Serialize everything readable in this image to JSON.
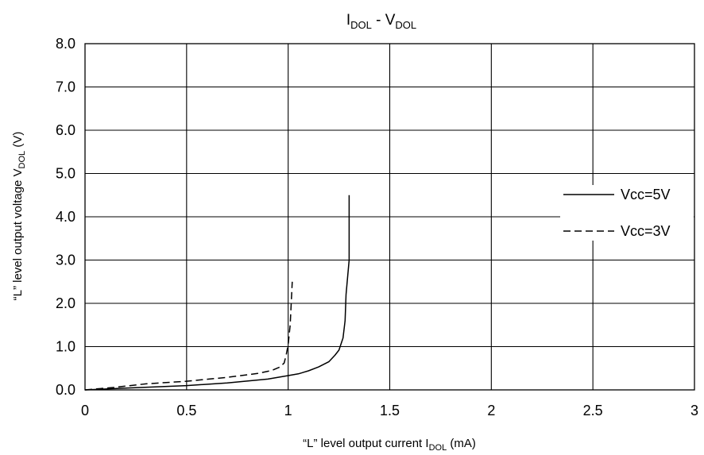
{
  "chart_data": {
    "type": "line",
    "title": {
      "main": "I",
      "sub1": "DOL",
      "mid": " - V",
      "sub2": "DOL"
    },
    "xlabel": {
      "pre": "“L” level output current I",
      "sub": "DOL",
      "post": " (mA)"
    },
    "ylabel": {
      "pre": "“L” level output voltage V",
      "sub": "DOL",
      "post": " (V)"
    },
    "xlim": [
      0,
      3
    ],
    "ylim": [
      0,
      8
    ],
    "x_ticks": [
      {
        "value": 0,
        "label": "0"
      },
      {
        "value": 0.5,
        "label": "0.5"
      },
      {
        "value": 1,
        "label": "1"
      },
      {
        "value": 1.5,
        "label": "1.5"
      },
      {
        "value": 2,
        "label": "2"
      },
      {
        "value": 2.5,
        "label": "2.5"
      },
      {
        "value": 3,
        "label": "3"
      }
    ],
    "y_ticks": [
      {
        "value": 0,
        "label": "0.0"
      },
      {
        "value": 1,
        "label": "1.0"
      },
      {
        "value": 2,
        "label": "2.0"
      },
      {
        "value": 3,
        "label": "3.0"
      },
      {
        "value": 4,
        "label": "4.0"
      },
      {
        "value": 5,
        "label": "5.0"
      },
      {
        "value": 6,
        "label": "6.0"
      },
      {
        "value": 7,
        "label": "7.0"
      },
      {
        "value": 8,
        "label": "8.0"
      }
    ],
    "grid": true,
    "legend_position": "right",
    "series": [
      {
        "name": "Vcc=5V",
        "style": "solid",
        "color": "#000000",
        "points": [
          [
            0,
            0
          ],
          [
            0.2,
            0.04
          ],
          [
            0.5,
            0.1
          ],
          [
            0.7,
            0.16
          ],
          [
            0.9,
            0.25
          ],
          [
            1.0,
            0.33
          ],
          [
            1.05,
            0.37
          ],
          [
            1.1,
            0.44
          ],
          [
            1.15,
            0.53
          ],
          [
            1.2,
            0.65
          ],
          [
            1.23,
            0.8
          ],
          [
            1.25,
            0.92
          ],
          [
            1.27,
            1.2
          ],
          [
            1.28,
            1.6
          ],
          [
            1.285,
            2.2
          ],
          [
            1.3,
            3.0
          ],
          [
            1.3,
            4.5
          ]
        ]
      },
      {
        "name": "Vcc=3V",
        "style": "dashed",
        "color": "#000000",
        "points": [
          [
            0,
            0
          ],
          [
            0.15,
            0.06
          ],
          [
            0.3,
            0.14
          ],
          [
            0.5,
            0.2
          ],
          [
            0.7,
            0.29
          ],
          [
            0.85,
            0.38
          ],
          [
            0.92,
            0.45
          ],
          [
            0.96,
            0.53
          ],
          [
            0.98,
            0.62
          ],
          [
            0.99,
            0.8
          ],
          [
            1.0,
            1.05
          ],
          [
            1.01,
            1.5
          ],
          [
            1.015,
            2.0
          ],
          [
            1.02,
            2.5
          ]
        ]
      }
    ]
  }
}
